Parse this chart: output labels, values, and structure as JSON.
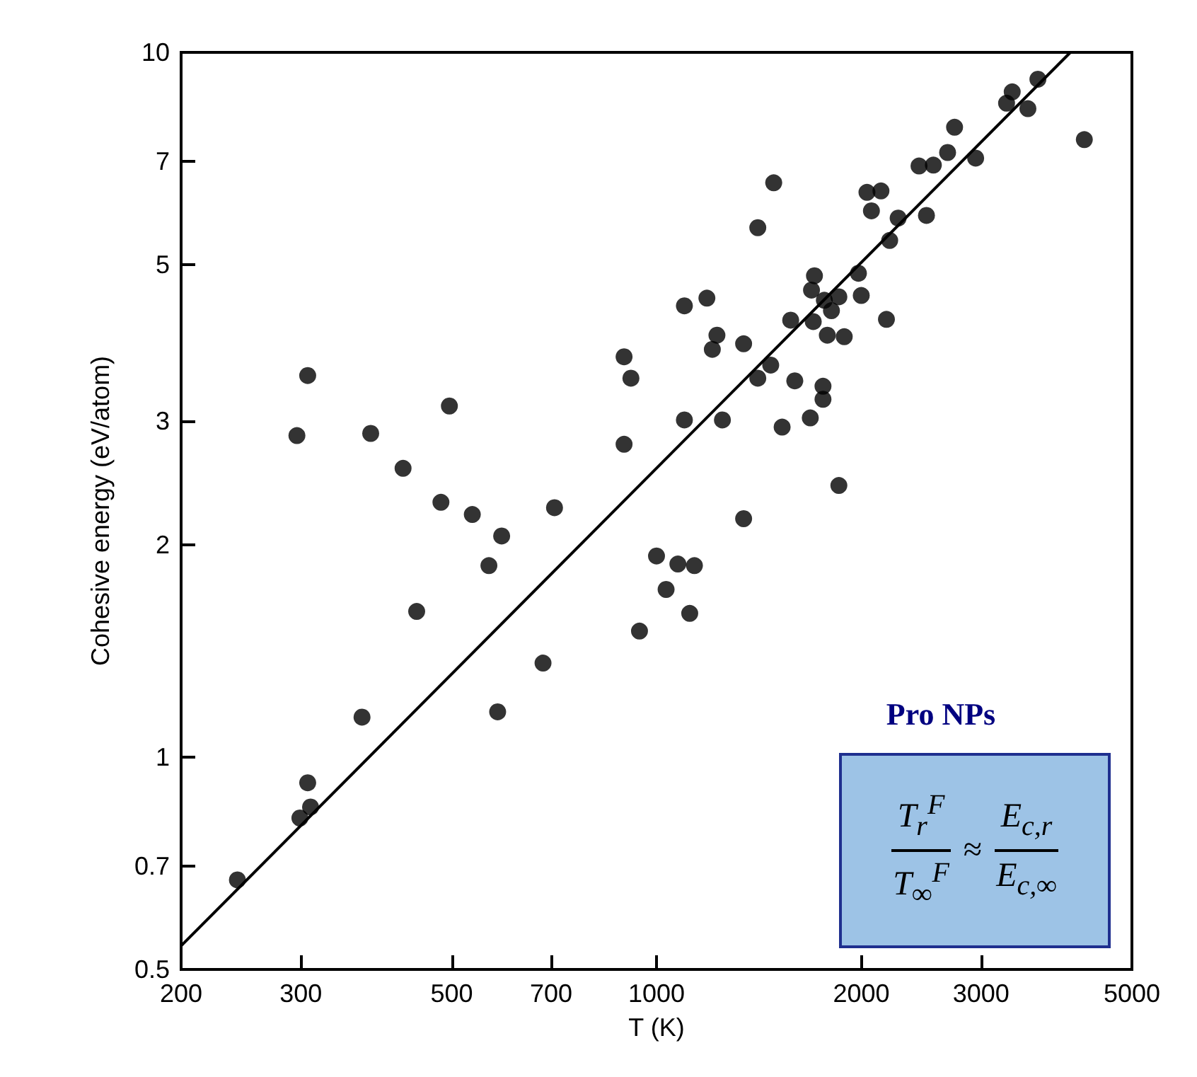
{
  "chart_data": {
    "type": "scatter",
    "xlabel": "T (K)",
    "ylabel": "Cohesive energy (eV/atom)",
    "log": "xy",
    "xlim": [
      200,
      5000
    ],
    "ylim": [
      0.5,
      10
    ],
    "xticks": [
      200,
      300,
      500,
      700,
      1000,
      2000,
      3000,
      5000
    ],
    "yticks": [
      0.5,
      0.7,
      1,
      2,
      3,
      5,
      7,
      10
    ],
    "grid": false,
    "marker": "circle",
    "annotations": [
      "Pro NPs",
      "T$_{r}$$^{F}$",
      "T$_{∞}$$^{F}$",
      "≈",
      "E$_{c,r}$",
      "E$_{c,∞}$"
    ],
    "series": [
      {
        "color": "#000000",
        "x": [
          242,
          299,
          310,
          307,
          296,
          307,
          369,
          380,
          424,
          444,
          482,
          496,
          536,
          567,
          592,
          584,
          681,
          708,
          896,
          917,
          896,
          944,
          1099,
          1186,
          1227,
          1208,
          1343,
          1099,
          1250,
          1409,
          1472,
          1530,
          1597,
          1683,
          1757,
          1757,
          1854,
          1343,
          1000,
          1075,
          1137,
          1033,
          1119,
          1409,
          1487,
          1575,
          1707,
          1690,
          1765,
          1854,
          1808,
          1700,
          1783,
          1888,
          1981,
          2000,
          2178,
          2202,
          2266,
          2070,
          2039,
          2138,
          2494,
          2432,
          2553,
          2679,
          2743,
          2946,
          3271,
          3334,
          3516,
          3637,
          4256
        ],
        "values": [
          0.67,
          0.82,
          0.85,
          0.92,
          2.86,
          3.48,
          1.14,
          2.88,
          2.57,
          1.61,
          2.3,
          3.15,
          2.21,
          1.87,
          2.06,
          1.16,
          1.36,
          2.26,
          3.7,
          3.45,
          2.78,
          1.51,
          4.37,
          4.48,
          3.97,
          3.79,
          3.86,
          3.01,
          3.01,
          3.45,
          3.6,
          2.94,
          3.42,
          3.03,
          3.36,
          3.22,
          2.43,
          2.18,
          1.93,
          1.88,
          1.87,
          1.73,
          1.6,
          5.64,
          6.53,
          4.17,
          4.82,
          4.6,
          4.45,
          4.5,
          4.3,
          4.15,
          3.97,
          3.95,
          4.86,
          4.52,
          4.18,
          5.41,
          5.82,
          5.96,
          6.33,
          6.36,
          5.87,
          6.9,
          6.92,
          7.21,
          7.83,
          7.08,
          8.47,
          8.79,
          8.32,
          9.16,
          7.52
        ]
      },
      {
        "type": "line",
        "color": "#000000",
        "marker": "none",
        "line_style": "solid",
        "x": [
          200,
          4060
        ],
        "values": [
          0.54,
          10
        ]
      }
    ]
  }
}
